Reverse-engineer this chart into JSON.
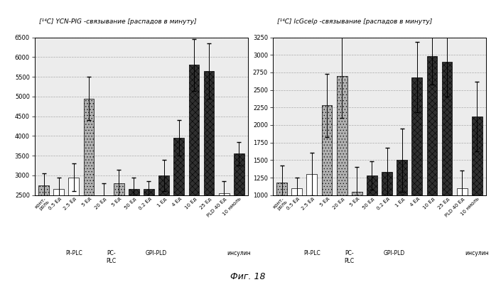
{
  "left_title": "[¹⁴C] YCN-PIG -связывание [распадов в минуту]",
  "right_title": "[¹⁴C] lcGcelρ -связывание [распадов в минуту]",
  "fig_label": "Фиг. 18",
  "left_ylim": [
    2500,
    6500
  ],
  "right_ylim": [
    1000,
    3250
  ],
  "left_yticks": [
    2500,
    3000,
    3500,
    4000,
    4500,
    5000,
    5500,
    6000,
    6500
  ],
  "right_yticks": [
    1000,
    1250,
    1500,
    1750,
    2000,
    2250,
    2500,
    2750,
    3000,
    3250
  ],
  "x_labels": [
    "конт-\nроль",
    "0.5 Ед",
    "2.5 Ед",
    "5 Ед",
    "20 Ед",
    "5 Ед",
    "50 Ед",
    "0.2 Ед",
    "1 Ед",
    "4 Ед",
    "10 Ед",
    "25 Ед",
    "PLD 40 Ед",
    "10 нмоль"
  ],
  "left_values": [
    2750,
    2650,
    2950,
    4950,
    2500,
    2800,
    2650,
    2650,
    3000,
    3950,
    5800,
    5650,
    2550,
    3550
  ],
  "left_errors": [
    300,
    300,
    350,
    550,
    300,
    350,
    300,
    200,
    400,
    450,
    650,
    700,
    300,
    300
  ],
  "right_values": [
    1175,
    1100,
    1300,
    2280,
    2700,
    1050,
    1280,
    1330,
    1500,
    2680,
    2980,
    2900,
    1100,
    2120
  ],
  "right_errors": [
    250,
    150,
    300,
    450,
    600,
    350,
    200,
    350,
    450,
    500,
    400,
    500,
    250,
    500
  ],
  "bar_styles": [
    "dot",
    "white",
    "white",
    "dot",
    "dot",
    "dot",
    "dark",
    "dark",
    "dark",
    "dark",
    "dark",
    "dark",
    "white",
    "dark"
  ],
  "group_info": [
    {
      "label": "PI-PLC",
      "start": 1,
      "end": 3
    },
    {
      "label": "PC-\nPLC",
      "start": 4,
      "end": 5
    },
    {
      "label": "GPI-PLD",
      "start": 6,
      "end": 9
    },
    {
      "label": "инсулин",
      "start": 13,
      "end": 13
    }
  ],
  "bg_color": "#e8e8e8",
  "title_area_color": "#f0f0f0"
}
